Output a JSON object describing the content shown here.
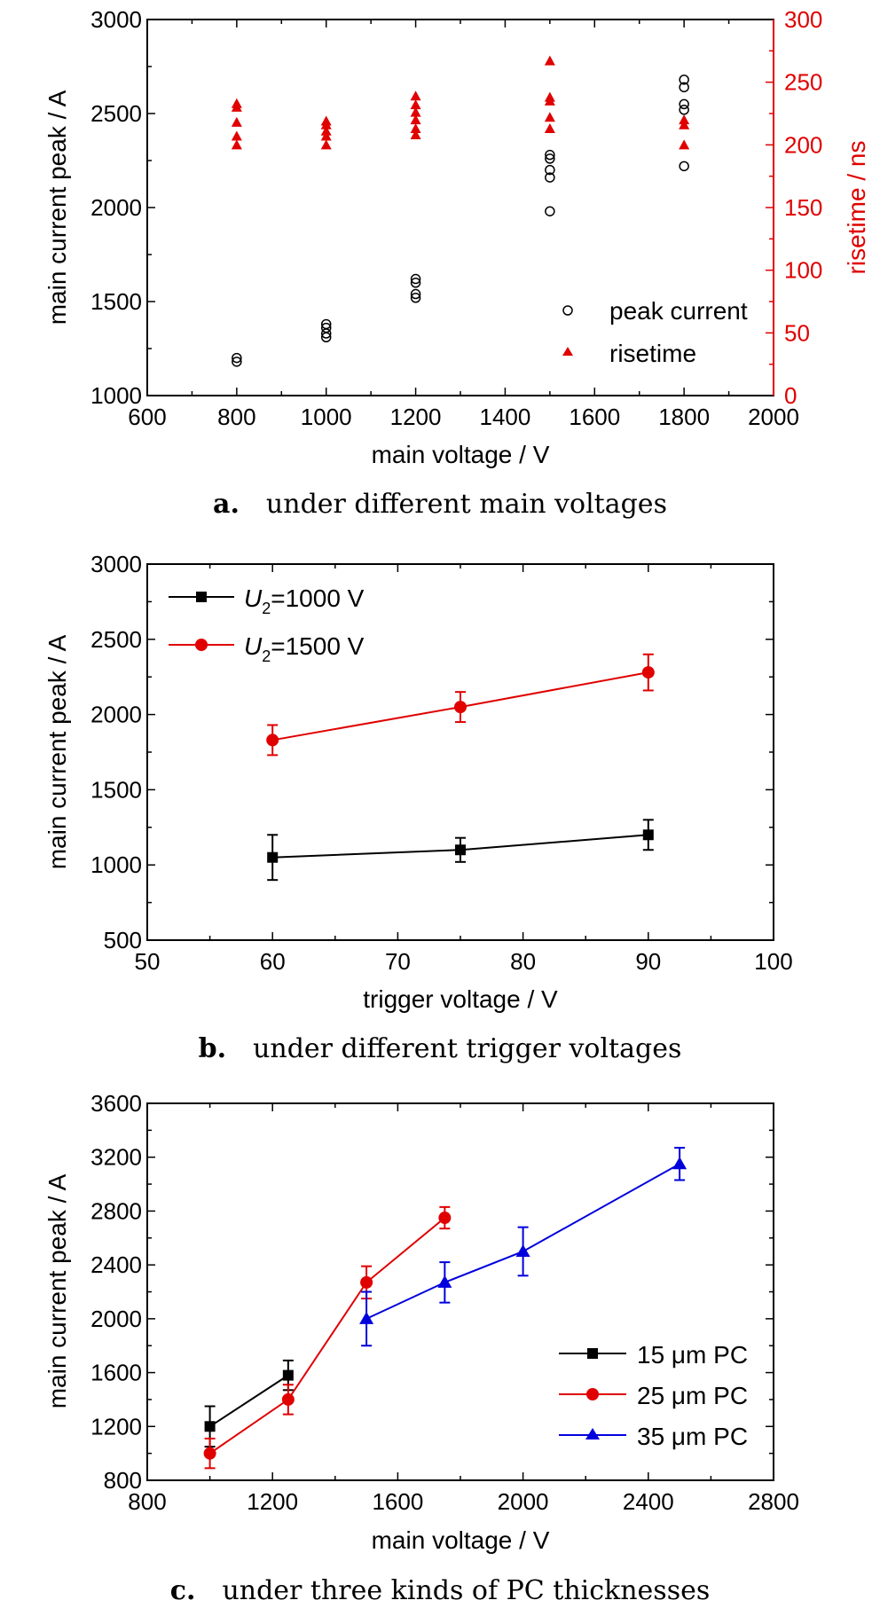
{
  "chart_data": [
    {
      "id": "a",
      "type": "scatter",
      "caption": {
        "letter": "a.",
        "text": "under different main voltages"
      },
      "xlabel": "main voltage / V",
      "ylabel": "main current peak / A",
      "ylabel_right": "risetime / ns",
      "xlim": [
        600,
        2000
      ],
      "ylim": [
        1000,
        3000
      ],
      "ylim_right": [
        0,
        300
      ],
      "x_ticks": [
        600,
        800,
        1000,
        1200,
        1400,
        1600,
        1800,
        2000
      ],
      "y_ticks": [
        1000,
        1500,
        2000,
        2500,
        3000
      ],
      "y_ticks_right": [
        0,
        50,
        100,
        150,
        200,
        250,
        300
      ],
      "x_minor_step": 100,
      "y_minor_step": 250,
      "y_right_minor_step": 25,
      "right_axis_color": "#e00000",
      "legend_position": "bottom-right",
      "series": [
        {
          "name": "peak current",
          "axis": "left",
          "marker": "open-circle",
          "color": "#000000",
          "points": [
            [
              800,
              1180
            ],
            [
              800,
              1200
            ],
            [
              1000,
              1310
            ],
            [
              1000,
              1330
            ],
            [
              1000,
              1360
            ],
            [
              1000,
              1380
            ],
            [
              1200,
              1520
            ],
            [
              1200,
              1540
            ],
            [
              1200,
              1600
            ],
            [
              1200,
              1620
            ],
            [
              1500,
              1980
            ],
            [
              1500,
              2160
            ],
            [
              1500,
              2200
            ],
            [
              1500,
              2260
            ],
            [
              1500,
              2280
            ],
            [
              1800,
              2220
            ],
            [
              1800,
              2520
            ],
            [
              1800,
              2550
            ],
            [
              1800,
              2640
            ],
            [
              1800,
              2680
            ]
          ]
        },
        {
          "name": "risetime",
          "axis": "right",
          "marker": "filled-triangle",
          "color": "#e00000",
          "points": [
            [
              800,
              200
            ],
            [
              800,
              207
            ],
            [
              800,
              218
            ],
            [
              800,
              230
            ],
            [
              800,
              233
            ],
            [
              1000,
              200
            ],
            [
              1000,
              207
            ],
            [
              1000,
              211
            ],
            [
              1000,
              216
            ],
            [
              1000,
              219
            ],
            [
              1200,
              208
            ],
            [
              1200,
              213
            ],
            [
              1200,
              220
            ],
            [
              1200,
              226
            ],
            [
              1200,
              232
            ],
            [
              1200,
              239
            ],
            [
              1500,
              213
            ],
            [
              1500,
              222
            ],
            [
              1500,
              235
            ],
            [
              1500,
              238
            ],
            [
              1500,
              267
            ],
            [
              1800,
              200
            ],
            [
              1800,
              216
            ],
            [
              1800,
              220
            ]
          ]
        }
      ]
    },
    {
      "id": "b",
      "type": "line",
      "caption": {
        "letter": "b.",
        "text": "under different trigger voltages"
      },
      "xlabel": "trigger voltage / V",
      "ylabel": "main current peak / A",
      "xlim": [
        50,
        100
      ],
      "ylim": [
        500,
        3000
      ],
      "x_ticks": [
        50,
        60,
        70,
        80,
        90,
        100
      ],
      "y_ticks": [
        500,
        1000,
        1500,
        2000,
        2500,
        3000
      ],
      "x_minor_step": 5,
      "y_minor_step": 250,
      "legend_position": "top-left",
      "series": [
        {
          "legend_var": "U",
          "legend_sub": "2",
          "legend_rest": "=1000 V",
          "marker": "square",
          "color": "#000000",
          "x": [
            60,
            75,
            90
          ],
          "y": [
            1050,
            1100,
            1200
          ],
          "err": [
            150,
            80,
            100
          ]
        },
        {
          "legend_var": "U",
          "legend_sub": "2",
          "legend_rest": "=1500 V",
          "marker": "circle",
          "color": "#e00000",
          "x": [
            60,
            75,
            90
          ],
          "y": [
            1830,
            2050,
            2280
          ],
          "err": [
            100,
            100,
            120
          ]
        }
      ]
    },
    {
      "id": "c",
      "type": "line",
      "caption": {
        "letter": "c.",
        "text": "under three kinds of PC thicknesses"
      },
      "xlabel": "main voltage / V",
      "ylabel": "main current peak / A",
      "xlim": [
        800,
        2800
      ],
      "ylim": [
        800,
        3600
      ],
      "x_ticks": [
        800,
        1200,
        1600,
        2000,
        2400,
        2800
      ],
      "y_ticks": [
        800,
        1200,
        1600,
        2000,
        2400,
        2800,
        3200,
        3600
      ],
      "x_minor_step": 200,
      "y_minor_step": 200,
      "legend_position": "bottom-right",
      "series": [
        {
          "name": "15 μm PC",
          "marker": "square",
          "color": "#000000",
          "x": [
            1000,
            1250
          ],
          "y": [
            1200,
            1580
          ],
          "err": [
            150,
            110
          ]
        },
        {
          "name": "25 μm PC",
          "marker": "circle",
          "color": "#e00000",
          "x": [
            1000,
            1250,
            1500,
            1750
          ],
          "y": [
            1000,
            1400,
            2270,
            2750
          ],
          "err": [
            110,
            110,
            120,
            80
          ]
        },
        {
          "name": "35 μm PC",
          "marker": "triangle",
          "color": "#0000dd",
          "x": [
            1500,
            1750,
            2000,
            2500
          ],
          "y": [
            2000,
            2270,
            2500,
            3150
          ],
          "err": [
            200,
            150,
            180,
            120
          ]
        }
      ]
    }
  ]
}
